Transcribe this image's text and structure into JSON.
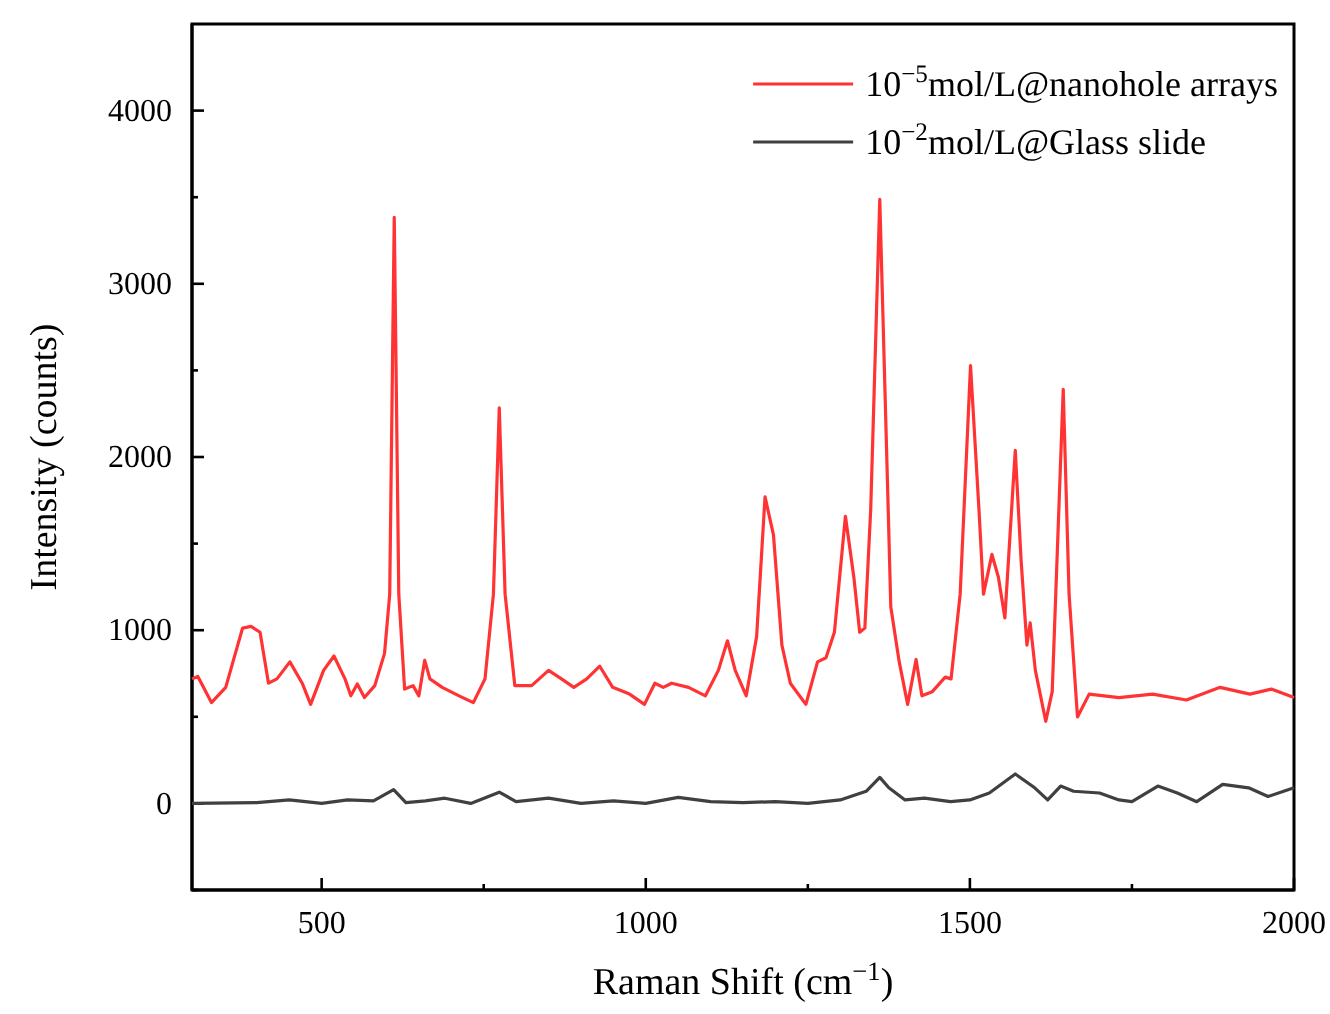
{
  "chart_data": {
    "type": "line",
    "xlabel": "Raman Shift (cm$^{−1}$)",
    "ylabel": "Intensity (counts)",
    "xlim": [
      300,
      2000
    ],
    "ylim": [
      -500,
      4500
    ],
    "xticks": [
      500,
      {
        "value": 750,
        "label": null
      },
      1000,
      {
        "value": 1250,
        "label": null
      },
      1500,
      {
        "value": 1750,
        "label": null
      },
      2000
    ],
    "yticks": [
      {
        "value": -500,
        "label": null
      },
      0,
      {
        "value": 500,
        "label": null
      },
      1000,
      {
        "value": 1500,
        "label": null
      },
      2000,
      {
        "value": 2500,
        "label": null
      },
      3000,
      {
        "value": 3500,
        "label": null
      },
      4000
    ],
    "grid": false,
    "legend": "top right",
    "marker": "none",
    "line_style": "solid",
    "series": [
      {
        "name": "10$^{−5}$mol/L@nanohole arrays",
        "color": "#ff3333",
        "x": [
          300,
          309,
          330,
          352,
          378,
          391,
          405,
          418,
          431,
          451,
          470,
          483,
          503,
          519,
          536,
          545,
          555,
          566,
          582,
          597,
          605,
          612,
          619,
          628,
          641,
          650,
          659,
          667,
          686,
          712,
          734,
          752,
          765,
          774,
          783,
          798,
          824,
          850,
          870,
          889,
          909,
          929,
          949,
          975,
          998,
          1014,
          1027,
          1040,
          1066,
          1092,
          1112,
          1126,
          1138,
          1155,
          1171,
          1184,
          1197,
          1210,
          1223,
          1247,
          1265,
          1278,
          1291,
          1308,
          1321,
          1330,
          1338,
          1347,
          1361,
          1374,
          1378,
          1391,
          1404,
          1417,
          1426,
          1442,
          1462,
          1471,
          1485,
          1501,
          1514,
          1521,
          1534,
          1544,
          1554,
          1570,
          1579,
          1588,
          1593,
          1601,
          1617,
          1627,
          1644,
          1653,
          1666,
          1684,
          1730,
          1782,
          1834,
          1886,
          1932,
          1965,
          2000
        ],
        "values": [
          719,
          733,
          582,
          670,
          1012,
          1022,
          988,
          694,
          719,
          817,
          694,
          572,
          768,
          851,
          719,
          621,
          690,
          611,
          680,
          866,
          1208,
          3384,
          1208,
          660,
          680,
          621,
          826,
          719,
          670,
          621,
          582,
          719,
          1208,
          2284,
          1208,
          680,
          680,
          768,
          719,
          670,
          719,
          792,
          670,
          631,
          572,
          694,
          670,
          694,
          670,
          621,
          768,
          939,
          768,
          621,
          963,
          1770,
          1550,
          914,
          694,
          572,
          817,
          841,
          988,
          1658,
          1306,
          988,
          1012,
          1697,
          3487,
          1697,
          1134,
          817,
          572,
          831,
          621,
          645,
          729,
          719,
          1208,
          2528,
          1697,
          1208,
          1438,
          1306,
          1071,
          2039,
          1403,
          914,
          1042,
          768,
          474,
          645,
          2391,
          1208,
          499,
          631,
          611,
          631,
          597,
          670,
          631,
          660,
          611
        ]
      },
      {
        "name": "10$^{−2}$mol/L@Glass slide",
        "color": "#404040",
        "x": [
          300,
          400,
          450,
          500,
          540,
          580,
          611,
          630,
          660,
          690,
          730,
          774,
          800,
          850,
          900,
          950,
          1000,
          1050,
          1100,
          1150,
          1200,
          1250,
          1300,
          1340,
          1361,
          1375,
          1400,
          1430,
          1470,
          1500,
          1530,
          1570,
          1600,
          1620,
          1640,
          1660,
          1700,
          1730,
          1750,
          1790,
          1820,
          1850,
          1890,
          1930,
          1960,
          2000
        ],
        "values": [
          0,
          5,
          20,
          0,
          20,
          15,
          80,
          5,
          15,
          30,
          0,
          65,
          10,
          30,
          0,
          15,
          0,
          35,
          10,
          5,
          10,
          0,
          20,
          70,
          150,
          90,
          20,
          30,
          10,
          20,
          60,
          170,
          90,
          20,
          100,
          70,
          60,
          20,
          10,
          100,
          60,
          10,
          110,
          90,
          40,
          90
        ]
      }
    ]
  }
}
